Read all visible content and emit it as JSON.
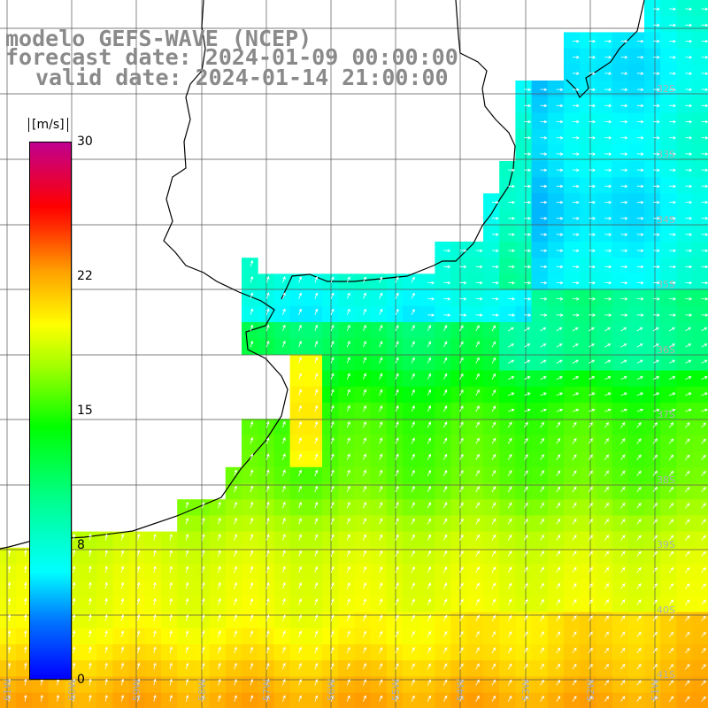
{
  "header": {
    "line1": "modelo GEFS-WAVE (NCEP)",
    "line2": "forecast date: 2024-01-09 00:00:00",
    "line3": "valid date: 2024-01-14 21:00:00"
  },
  "colorbar": {
    "unit": "[m/s]",
    "ticks": [
      "30",
      "22",
      "15",
      "8",
      "0"
    ],
    "colors": [
      "#0000ff",
      "#0078ff",
      "#00ffff",
      "#00ff90",
      "#00ff00",
      "#a0ff00",
      "#ffff00",
      "#ffa000",
      "#ff3000",
      "#ff0000",
      "#c00090"
    ]
  },
  "lon_labels": [
    "61W",
    "60W",
    "59W",
    "58W",
    "57W",
    "56W",
    "55W",
    "54W",
    "53W",
    "52W",
    "51W"
  ],
  "lat_labels": [
    "32S",
    "33S",
    "34S",
    "35S",
    "36S",
    "37S",
    "38S",
    "39S",
    "40S",
    "41S"
  ],
  "map": {
    "land_color": "#ffffff",
    "coast_color": "#000000",
    "arrow_color": "#ffffff"
  }
}
